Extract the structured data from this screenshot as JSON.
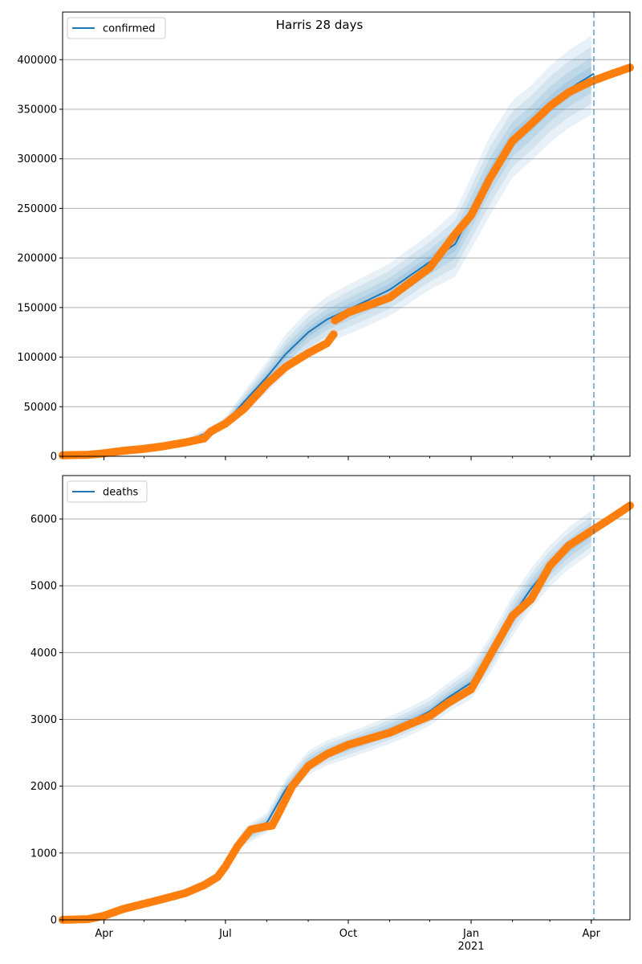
{
  "title": "Harris 28 days",
  "colors": {
    "forecast": "#1f77b4",
    "observed": "#ff7f0e",
    "band": "#1f77b4",
    "grid": "#b0b0b0",
    "axes": "#000000"
  },
  "x_axis": {
    "start": "2020-03-01",
    "end": "2021-04-30",
    "major_ticks": [
      {
        "date": "2020-04-01",
        "label": "Apr"
      },
      {
        "date": "2020-07-01",
        "label": "Jul"
      },
      {
        "date": "2020-10-01",
        "label": "Oct"
      },
      {
        "date": "2021-01-01",
        "label": "Jan"
      },
      {
        "date": "2021-04-01",
        "label": "Apr"
      }
    ],
    "year_label": {
      "date": "2021-01-01",
      "label": "2021"
    },
    "forecast_start": "2021-04-03"
  },
  "chart_data": [
    {
      "type": "line",
      "panel": "top",
      "legend": "confirmed",
      "legend_position": "top-left",
      "title": "Harris 28 days",
      "grid": true,
      "ylim": [
        0,
        448000
      ],
      "yticks": [
        0,
        50000,
        100000,
        150000,
        200000,
        250000,
        300000,
        350000,
        400000
      ],
      "ytick_labels": [
        "0",
        "50000",
        "100000",
        "150000",
        "200000",
        "250000",
        "300000",
        "350000",
        "400000"
      ],
      "forecast_line": {
        "x": [
          "2020-03-01",
          "2020-06-01",
          "2020-06-20",
          "2020-07-01",
          "2020-07-15",
          "2020-08-01",
          "2020-08-15",
          "2020-09-01",
          "2020-09-15",
          "2020-10-01",
          "2020-11-01",
          "2020-12-01",
          "2020-12-20",
          "2021-01-01",
          "2021-01-15",
          "2021-02-01",
          "2021-02-15",
          "2021-03-01",
          "2021-03-15",
          "2021-04-03"
        ],
        "y": [
          1000,
          15000,
          25000,
          34000,
          55000,
          80000,
          103000,
          125000,
          138000,
          148000,
          168000,
          196000,
          214000,
          245000,
          283000,
          320000,
          336000,
          355000,
          370000,
          386000
        ]
      },
      "band_spread": {
        "x": [
          "2020-03-01",
          "2020-06-01",
          "2020-07-01",
          "2020-08-15",
          "2020-10-01",
          "2020-12-01",
          "2021-01-15",
          "2021-02-15",
          "2021-04-03"
        ],
        "s": [
          500,
          2500,
          6000,
          20000,
          25000,
          28000,
          40000,
          38000,
          40000
        ]
      },
      "observed": {
        "x": [
          "2020-03-01",
          "2020-03-20",
          "2020-04-01",
          "2020-04-15",
          "2020-05-01",
          "2020-05-15",
          "2020-06-01",
          "2020-06-15",
          "2020-06-20",
          "2020-07-01",
          "2020-07-15",
          "2020-08-01",
          "2020-08-15",
          "2020-09-01",
          "2020-09-15",
          "2020-09-20",
          "2020-09-21",
          "2020-10-01",
          "2020-11-01",
          "2020-12-01",
          "2020-12-20",
          "2021-01-01",
          "2021-01-15",
          "2021-02-01",
          "2021-02-15",
          "2021-03-01",
          "2021-03-15",
          "2021-04-01",
          "2021-04-15",
          "2021-04-30"
        ],
        "y": [
          1000,
          1500,
          3000,
          5500,
          7500,
          10000,
          14000,
          18000,
          25000,
          33000,
          48000,
          73000,
          90000,
          104000,
          114000,
          123000,
          137000,
          145000,
          160000,
          190000,
          224000,
          243000,
          280000,
          318000,
          335000,
          353000,
          367000,
          378000,
          385000,
          392000
        ]
      }
    },
    {
      "type": "line",
      "panel": "bottom",
      "legend": "deaths",
      "legend_position": "top-left",
      "grid": true,
      "ylim": [
        0,
        6650
      ],
      "yticks": [
        0,
        1000,
        2000,
        3000,
        4000,
        5000,
        6000
      ],
      "ytick_labels": [
        "0",
        "1000",
        "2000",
        "3000",
        "4000",
        "5000",
        "6000"
      ],
      "forecast_line": {
        "x": [
          "2020-03-01",
          "2020-03-25",
          "2020-04-01",
          "2020-04-15",
          "2020-05-01",
          "2020-05-15",
          "2020-06-01",
          "2020-06-15",
          "2020-06-25",
          "2020-07-01",
          "2020-07-15",
          "2020-08-01",
          "2020-08-15",
          "2020-09-01",
          "2020-09-15",
          "2020-10-01",
          "2020-11-01",
          "2020-11-15",
          "2020-12-01",
          "2020-12-15",
          "2021-01-01",
          "2021-01-15",
          "2021-02-01",
          "2021-02-15",
          "2021-03-01",
          "2021-03-15",
          "2021-04-03"
        ],
        "y": [
          0,
          20,
          60,
          160,
          240,
          320,
          420,
          530,
          640,
          800,
          1250,
          1450,
          1950,
          2350,
          2500,
          2610,
          2840,
          2960,
          3120,
          3330,
          3550,
          3960,
          4550,
          4960,
          5300,
          5560,
          5840
        ]
      },
      "band_spread": {
        "x": [
          "2020-03-01",
          "2020-05-01",
          "2020-06-25",
          "2020-07-20",
          "2020-09-01",
          "2020-10-15",
          "2020-12-15",
          "2021-02-01",
          "2021-04-03"
        ],
        "s": [
          15,
          40,
          60,
          140,
          180,
          200,
          220,
          300,
          320
        ]
      },
      "observed": {
        "x": [
          "2020-03-01",
          "2020-03-20",
          "2020-04-01",
          "2020-04-15",
          "2020-05-01",
          "2020-05-15",
          "2020-06-01",
          "2020-06-15",
          "2020-06-25",
          "2020-07-01",
          "2020-07-10",
          "2020-07-20",
          "2020-08-01",
          "2020-08-05",
          "2020-08-10",
          "2020-08-20",
          "2020-09-01",
          "2020-09-15",
          "2020-10-01",
          "2020-11-01",
          "2020-11-15",
          "2020-12-01",
          "2020-12-15",
          "2021-01-01",
          "2021-01-15",
          "2021-02-01",
          "2021-02-15",
          "2021-03-01",
          "2021-03-15",
          "2021-04-01",
          "2021-04-15",
          "2021-04-30"
        ],
        "y": [
          0,
          10,
          60,
          160,
          240,
          310,
          400,
          520,
          640,
          800,
          1100,
          1350,
          1400,
          1410,
          1600,
          2000,
          2300,
          2480,
          2620,
          2800,
          2920,
          3050,
          3250,
          3450,
          3950,
          4550,
          4800,
          5300,
          5600,
          5820,
          6000,
          6200
        ]
      }
    }
  ]
}
